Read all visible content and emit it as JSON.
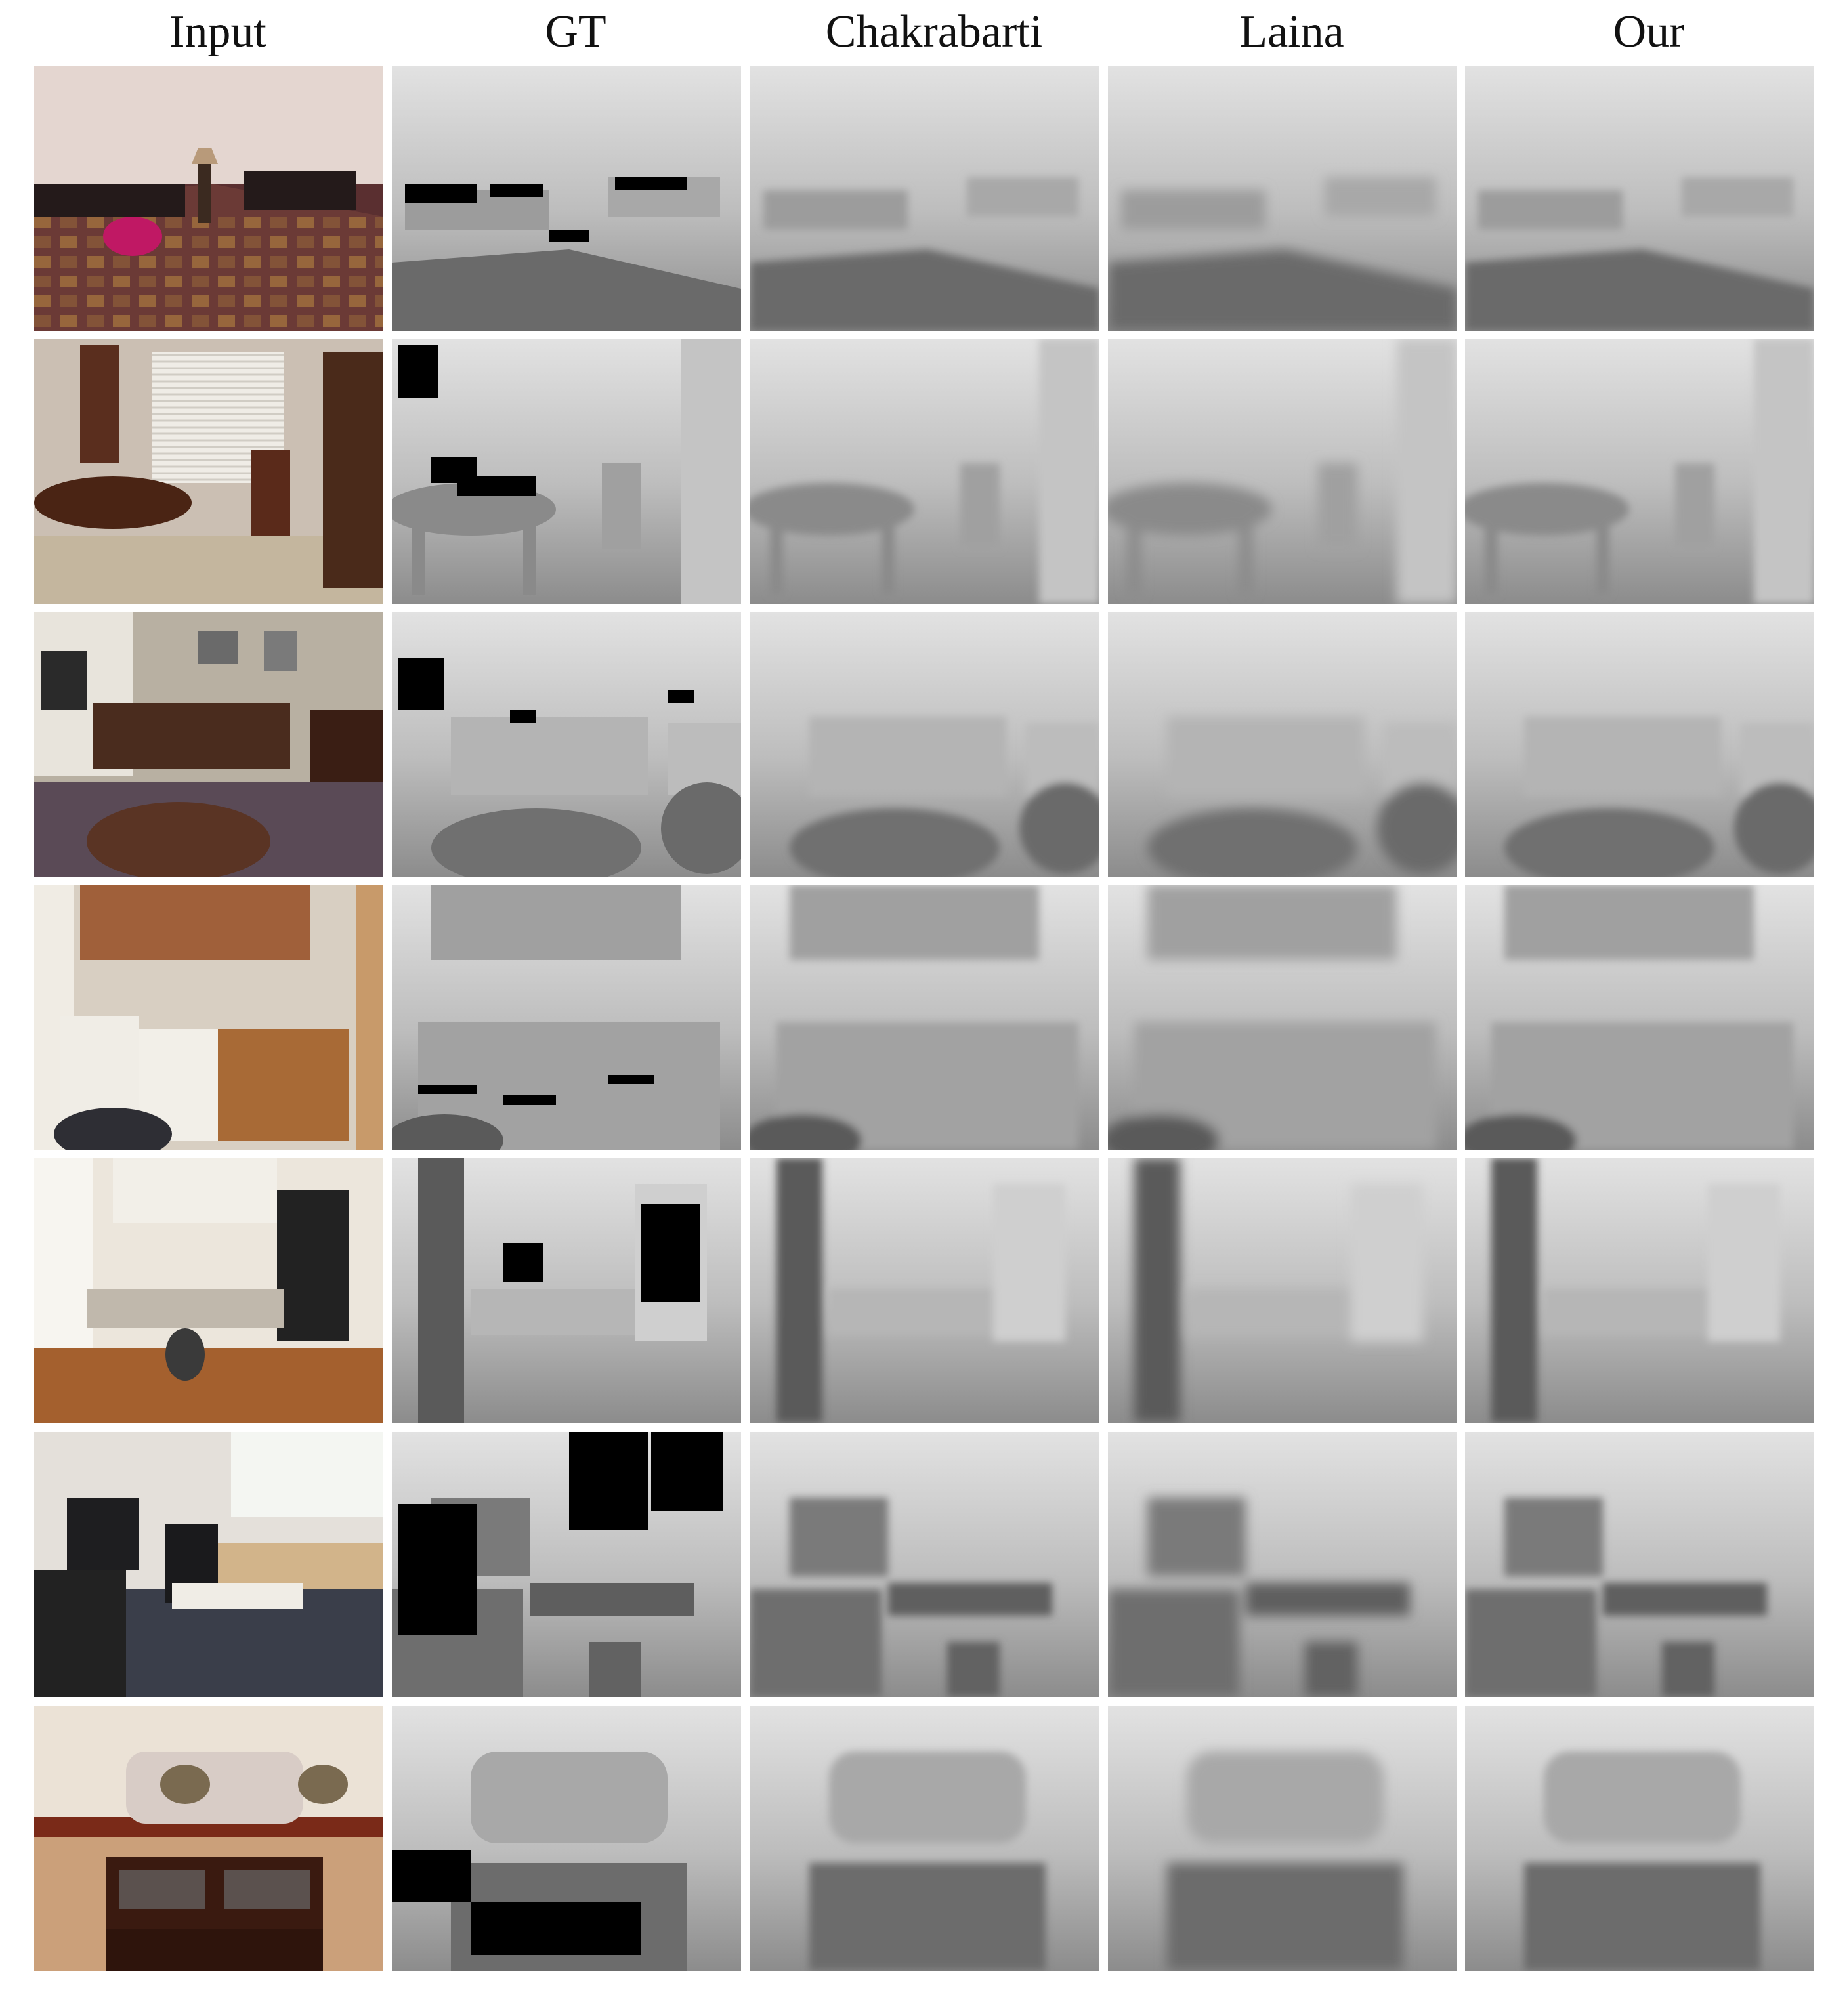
{
  "figure": {
    "columns": [
      {
        "key": "input",
        "label": "Input"
      },
      {
        "key": "gt",
        "label": "GT"
      },
      {
        "key": "chakrabarti",
        "label": "Chakrabarti"
      },
      {
        "key": "laina",
        "label": "Laina"
      },
      {
        "key": "our",
        "label": "Our"
      }
    ],
    "rows": [
      {
        "scene": "bedroom",
        "kind": "bedroom"
      },
      {
        "scene": "dining-room",
        "kind": "dining"
      },
      {
        "scene": "office-desk",
        "kind": "office"
      },
      {
        "scene": "kitchen",
        "kind": "kitchen"
      },
      {
        "scene": "home-office",
        "kind": "homeoffice"
      },
      {
        "scene": "workspace",
        "kind": "workspace"
      },
      {
        "scene": "living-room",
        "kind": "living"
      }
    ],
    "colors": {
      "input_wall": "#d9ccc4",
      "input_wood": "#6e3b22",
      "depth_far": "#f2f2f2",
      "depth_near": "#4a4a4a",
      "gt_hole": "#000000"
    }
  }
}
